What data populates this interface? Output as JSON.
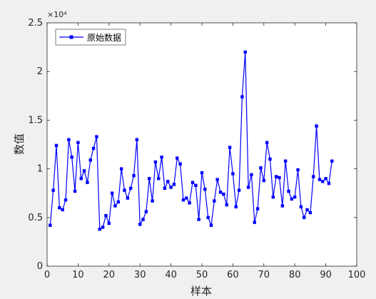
{
  "chart_data": {
    "type": "line",
    "title": "",
    "xlabel": "样本",
    "ylabel": "数值",
    "y_exponent_label": "×10⁴",
    "xlim": [
      0,
      100
    ],
    "ylim": [
      0,
      2.5
    ],
    "x_ticks": [
      "0",
      "10",
      "20",
      "30",
      "40",
      "50",
      "60",
      "70",
      "80",
      "90",
      "100"
    ],
    "y_ticks": [
      "0",
      "0.5",
      "1",
      "1.5",
      "2",
      "2.5"
    ],
    "grid": false,
    "legend_position": "top-left",
    "series": [
      {
        "name": "原始数据",
        "color": "#0000ff",
        "marker": "square",
        "x": [
          1,
          2,
          3,
          4,
          5,
          6,
          7,
          8,
          9,
          10,
          11,
          12,
          13,
          14,
          15,
          16,
          17,
          18,
          19,
          20,
          21,
          22,
          23,
          24,
          25,
          26,
          27,
          28,
          29,
          30,
          31,
          32,
          33,
          34,
          35,
          36,
          37,
          38,
          39,
          40,
          41,
          42,
          43,
          44,
          45,
          46,
          47,
          48,
          49,
          50,
          51,
          52,
          53,
          54,
          55,
          56,
          57,
          58,
          59,
          60,
          61,
          62,
          63,
          64,
          65,
          66,
          67,
          68,
          69,
          70,
          71,
          72,
          73,
          74,
          75,
          76,
          77,
          78,
          79,
          80,
          81,
          82,
          83,
          84,
          85,
          86,
          87,
          88,
          89,
          90,
          91,
          92
        ],
        "y": [
          0.42,
          0.78,
          1.24,
          0.6,
          0.58,
          0.68,
          1.3,
          1.12,
          0.77,
          1.27,
          0.9,
          0.98,
          0.86,
          1.09,
          1.21,
          1.33,
          0.38,
          0.4,
          0.52,
          0.44,
          0.75,
          0.62,
          0.66,
          1.0,
          0.78,
          0.7,
          0.8,
          0.93,
          1.3,
          0.43,
          0.48,
          0.56,
          0.9,
          0.67,
          1.07,
          0.9,
          1.12,
          0.8,
          0.87,
          0.81,
          0.84,
          1.11,
          1.05,
          0.68,
          0.7,
          0.65,
          0.86,
          0.83,
          0.48,
          0.96,
          0.79,
          0.5,
          0.42,
          0.67,
          0.89,
          0.76,
          0.74,
          0.63,
          1.22,
          0.95,
          0.61,
          0.78,
          1.74,
          2.2,
          0.81,
          0.94,
          0.45,
          0.59,
          1.01,
          0.88,
          1.27,
          1.1,
          0.71,
          0.92,
          0.91,
          0.62,
          1.08,
          0.77,
          0.69,
          0.71,
          0.99,
          0.61,
          0.5,
          0.58,
          0.55,
          0.92,
          1.44,
          0.89,
          0.87,
          0.9,
          0.85,
          1.08
        ]
      }
    ]
  }
}
